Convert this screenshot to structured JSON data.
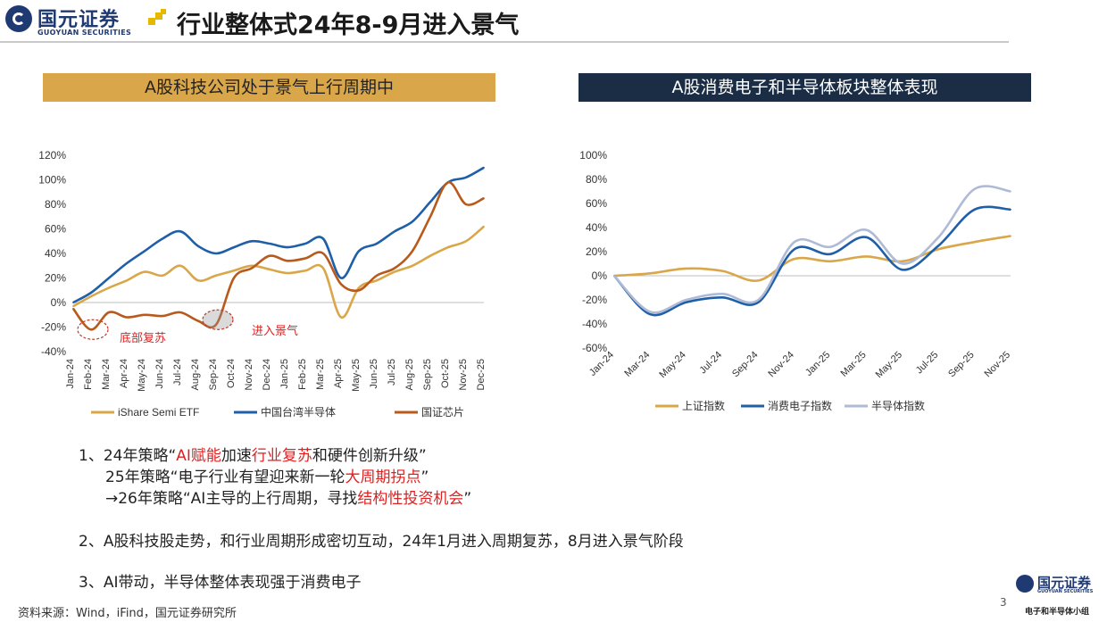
{
  "header": {
    "brand_cn": "国元证券",
    "brand_en": "GUOYUAN SECURITIES",
    "title": "行业整体式24年8-9月进入景气"
  },
  "colors": {
    "gold": "#d9a74a",
    "navy": "#1b2d45",
    "brand_blue": "#1f3a73",
    "accent_red": "#e02020"
  },
  "chart_data": [
    {
      "type": "line",
      "title": "A股科技公司处于景气上行周期中",
      "x": [
        "Jan-24",
        "Feb-24",
        "Mar-24",
        "Apr-24",
        "May-24",
        "Jun-24",
        "Jul-24",
        "Aug-24",
        "Sep-24",
        "Oct-24",
        "Nov-24",
        "Dec-24",
        "Jan-25",
        "Feb-25",
        "Mar-25",
        "Apr-25",
        "May-25",
        "Jun-25",
        "Jul-25",
        "Aug-25",
        "Sep-25",
        "Oct-25",
        "Nov-25",
        "Dec-25"
      ],
      "xlabel": "",
      "ylabel": "",
      "ylim": [
        -40,
        120
      ],
      "yticks": [
        "120%",
        "100%",
        "80%",
        "60%",
        "40%",
        "20%",
        "0%",
        "-20%",
        "-40%"
      ],
      "series": [
        {
          "name": "iShare Semi ETF",
          "color": "#d9a74a",
          "values": [
            -3,
            5,
            12,
            18,
            25,
            22,
            30,
            18,
            22,
            26,
            30,
            27,
            24,
            26,
            28,
            -12,
            12,
            18,
            25,
            30,
            38,
            45,
            50,
            62
          ]
        },
        {
          "name": "中国台湾半导体",
          "color": "#1f5fa8",
          "values": [
            0,
            8,
            20,
            32,
            42,
            52,
            58,
            46,
            40,
            45,
            50,
            48,
            45,
            48,
            52,
            20,
            42,
            48,
            58,
            66,
            82,
            98,
            102,
            110
          ]
        },
        {
          "name": "国证芯片",
          "color": "#b85a1c",
          "values": [
            -5,
            -22,
            -8,
            -12,
            -10,
            -11,
            -8,
            -15,
            -18,
            20,
            28,
            38,
            34,
            36,
            40,
            15,
            10,
            22,
            28,
            42,
            70,
            98,
            80,
            85
          ]
        }
      ],
      "annotations": [
        "底部复苏",
        "进入景气"
      ],
      "legend": "bottom"
    },
    {
      "type": "line",
      "title": "A股消费电子和半导体板块整体表现",
      "x": [
        "Jan-24",
        "Mar-24",
        "May-24",
        "Jul-24",
        "Sep-24",
        "Nov-24",
        "Jan-25",
        "Mar-25",
        "May-25",
        "Jul-25",
        "Sep-25",
        "Nov-25"
      ],
      "xlabel": "",
      "ylabel": "",
      "ylim": [
        -60,
        100
      ],
      "yticks": [
        "100%",
        "80%",
        "60%",
        "40%",
        "20%",
        "0%",
        "-20%",
        "-40%",
        "-60%"
      ],
      "series": [
        {
          "name": "上证指数",
          "color": "#d9a74a",
          "values": [
            0,
            2,
            6,
            4,
            -4,
            14,
            12,
            16,
            12,
            22,
            28,
            33
          ]
        },
        {
          "name": "消费电子指数",
          "color": "#1f5fa8",
          "values": [
            0,
            -32,
            -22,
            -18,
            -22,
            22,
            18,
            32,
            5,
            25,
            55,
            55
          ]
        },
        {
          "name": "半导体指数",
          "color": "#aebad6",
          "values": [
            0,
            -30,
            -20,
            -15,
            -20,
            28,
            24,
            38,
            10,
            32,
            72,
            70
          ]
        }
      ],
      "legend": "bottom"
    }
  ],
  "notes": {
    "n1_a": "1、24年策略“",
    "n1_b": "AI赋能",
    "n1_c": "加速",
    "n1_d": "行业复苏",
    "n1_e": "和硬件创新升级”",
    "n2_a": "25年策略“电子行业有望迎来新一轮",
    "n2_b": "大周期拐点",
    "n2_c": "”",
    "n3_a": "→26年策略“AI主导的上行周期，寻找",
    "n3_b": "结构性投资机会",
    "n3_c": "”",
    "n4": "2、A股科技股走势，和行业周期形成密切互动，24年1月进入周期复苏，8月进入景气阶段",
    "n5": "3、AI带动，半导体整体表现强于消费电子"
  },
  "footer": {
    "source": "资料来源：Wind，iFind，国元证券研究所",
    "page": "3",
    "brand_cn": "国元证券",
    "brand_en": "GUOYUAN SECURITIES",
    "team": "电子和半导体小组"
  }
}
